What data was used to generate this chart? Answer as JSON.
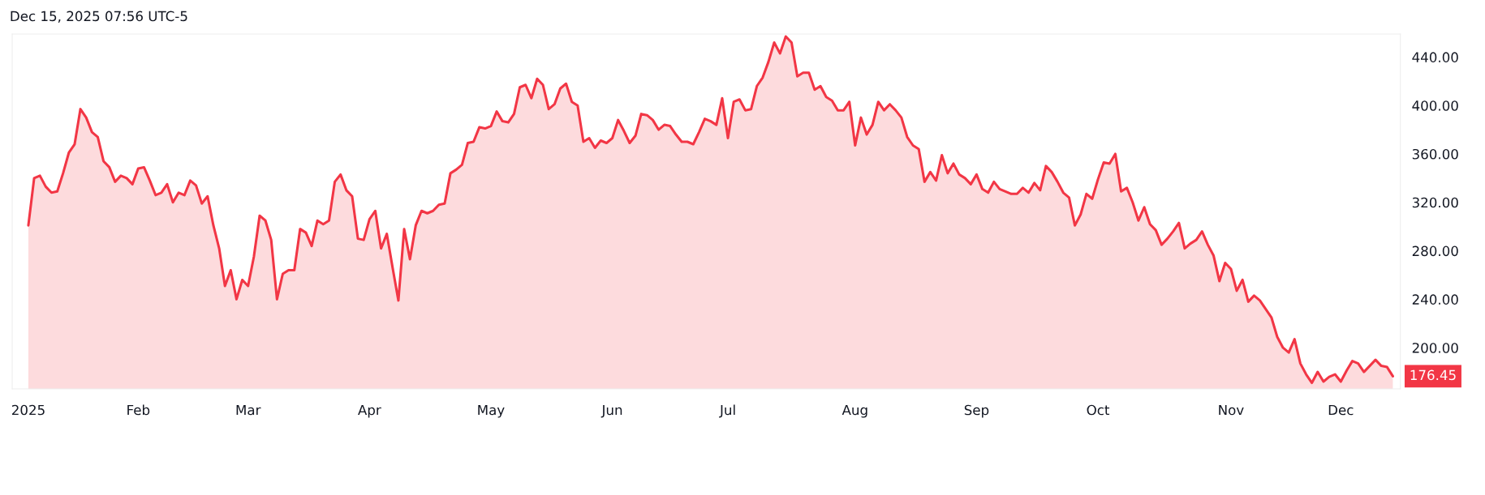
{
  "chart_data": {
    "type": "area",
    "annotations": [
      "Dec 15, 2025 07:56 UTC-5",
      "176.45"
    ],
    "categories": [
      "2025",
      null,
      null,
      null,
      null,
      null,
      null,
      null,
      null,
      null,
      null,
      null,
      null,
      null,
      null,
      null,
      null,
      null,
      null,
      "Feb",
      null,
      null,
      null,
      null,
      null,
      null,
      null,
      null,
      null,
      null,
      null,
      null,
      null,
      null,
      null,
      null,
      null,
      null,
      "Mar",
      null,
      null,
      null,
      null,
      null,
      null,
      null,
      null,
      null,
      null,
      null,
      null,
      null,
      null,
      null,
      null,
      null,
      null,
      null,
      null,
      "Apr",
      null,
      null,
      null,
      null,
      null,
      null,
      null,
      null,
      null,
      null,
      null,
      null,
      null,
      null,
      null,
      null,
      null,
      null,
      null,
      null,
      "May",
      null,
      null,
      null,
      null,
      null,
      null,
      null,
      null,
      null,
      null,
      null,
      null,
      null,
      null,
      null,
      null,
      null,
      null,
      null,
      null,
      "Jun",
      null,
      null,
      null,
      null,
      null,
      null,
      null,
      null,
      null,
      null,
      null,
      null,
      null,
      null,
      null,
      null,
      null,
      null,
      null,
      "Jul",
      null,
      null,
      null,
      null,
      null,
      null,
      null,
      null,
      null,
      null,
      null,
      null,
      null,
      null,
      null,
      null,
      null,
      null,
      null,
      null,
      null,
      "Aug",
      null,
      null,
      null,
      null,
      null,
      null,
      null,
      null,
      null,
      null,
      null,
      null,
      null,
      null,
      null,
      null,
      null,
      null,
      null,
      null,
      "Sep",
      null,
      null,
      null,
      null,
      null,
      null,
      null,
      null,
      null,
      null,
      null,
      null,
      null,
      null,
      null,
      null,
      null,
      null,
      null,
      null,
      "Oct",
      null,
      null,
      null,
      null,
      null,
      null,
      null,
      null,
      null,
      null,
      null,
      null,
      null,
      null,
      null,
      null,
      null,
      null,
      null,
      null,
      null,
      null,
      "Nov",
      null,
      null,
      null,
      null,
      null,
      null,
      null,
      null,
      null,
      null,
      null,
      null,
      null,
      null,
      null,
      null,
      null,
      null,
      "Dec",
      null,
      null,
      null,
      null,
      null,
      null,
      null,
      null,
      null
    ],
    "series": [
      {
        "color": "#f23645",
        "values": [
          301,
          340,
          342,
          333,
          328,
          329,
          344,
          361,
          368,
          397,
          390,
          378,
          374,
          354,
          349,
          337,
          342,
          340,
          335,
          348,
          349,
          338,
          326,
          328,
          335,
          320,
          328,
          326,
          338,
          334,
          319,
          325,
          301,
          282,
          251,
          264,
          240,
          256,
          251,
          275,
          309,
          305,
          289,
          240,
          261,
          264,
          264,
          298,
          295,
          284,
          305,
          302,
          305,
          337,
          343,
          330,
          325,
          290,
          289,
          306,
          313,
          282,
          294,
          266,
          239,
          298,
          273,
          301,
          313,
          311,
          313,
          318,
          319,
          344,
          347,
          351,
          369,
          370,
          382,
          381,
          383,
          395,
          387,
          386,
          393,
          415,
          417,
          406,
          422,
          417,
          397,
          401,
          414,
          418,
          403,
          400,
          370,
          373,
          365,
          371,
          369,
          373,
          388,
          379,
          369,
          375,
          393,
          392,
          388,
          380,
          384,
          383,
          376,
          370,
          370,
          368,
          378,
          389,
          387,
          384,
          406,
          373,
          403,
          405,
          396,
          397,
          416,
          423,
          436,
          452,
          443,
          457,
          452,
          424,
          427,
          427,
          413,
          416,
          407,
          404,
          396,
          396,
          403,
          367,
          390,
          376,
          384,
          403,
          396,
          401,
          396,
          390,
          374,
          367,
          364,
          337,
          345,
          338,
          359,
          344,
          352,
          343,
          340,
          335,
          343,
          331,
          328,
          337,
          331,
          329,
          327,
          327,
          332,
          328,
          336,
          330,
          350,
          345,
          337,
          328,
          324,
          301,
          310,
          327,
          323,
          339,
          353,
          352,
          360,
          329,
          332,
          320,
          305,
          316,
          302,
          297,
          285,
          290,
          296,
          303,
          282,
          286,
          289,
          296,
          285,
          276,
          255,
          270,
          265,
          247,
          256,
          238,
          243,
          239,
          232,
          225,
          209,
          200,
          196,
          207,
          187,
          178,
          171,
          180,
          172,
          176,
          178,
          172,
          181,
          189,
          187,
          180,
          185,
          190,
          185,
          184,
          176.45
        ]
      }
    ],
    "ylim": [
      166,
      459
    ],
    "yticks": [
      {
        "value": 200,
        "label": "200.00"
      },
      {
        "value": 240,
        "label": "240.00"
      },
      {
        "value": 280,
        "label": "280.00"
      },
      {
        "value": 320,
        "label": "320.00"
      },
      {
        "value": 360,
        "label": "360.00"
      },
      {
        "value": 400,
        "label": "400.00"
      },
      {
        "value": 440,
        "label": "440.00"
      }
    ],
    "grid": false,
    "legend": false
  }
}
